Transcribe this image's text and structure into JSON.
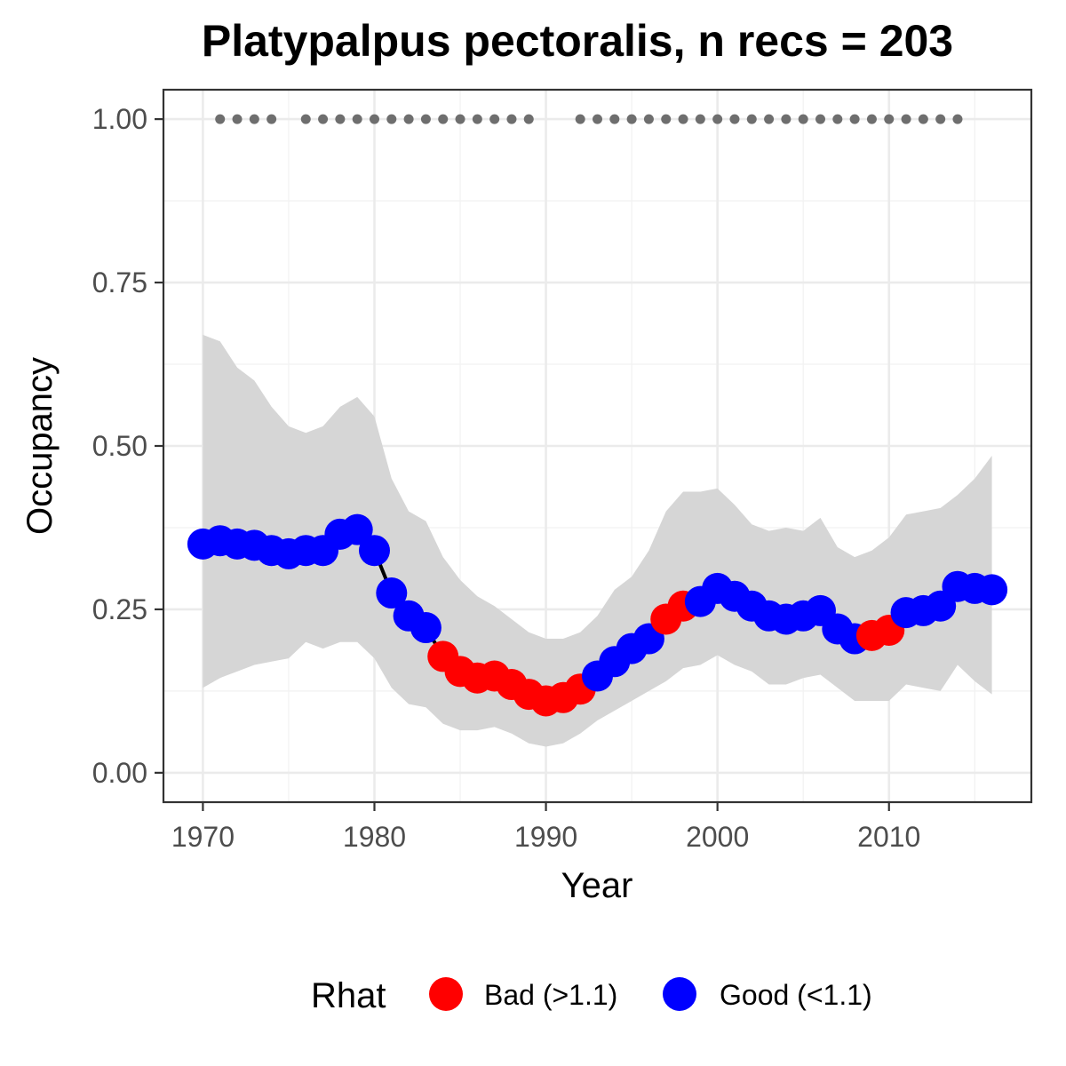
{
  "chart_data": {
    "type": "line",
    "title": "Platypalpus pectoralis, n recs = 203",
    "xlabel": "Year",
    "ylabel": "Occupancy",
    "xlim": [
      1967.7,
      2018.3
    ],
    "ylim": [
      -0.045,
      1.045
    ],
    "x_ticks": [
      1970,
      1980,
      1990,
      2000,
      2010
    ],
    "x_tick_labels": [
      "1970",
      "1980",
      "1990",
      "2000",
      "2010"
    ],
    "y_ticks": [
      0,
      0.25,
      0.5,
      0.75,
      1.0
    ],
    "y_tick_labels": [
      "0.00",
      "0.25",
      "0.50",
      "0.75",
      "1.00"
    ],
    "grid": true,
    "colors": {
      "bad": "#FF0000",
      "good": "#0000FF",
      "ribbon": "#d6d6d6",
      "line": "#000000",
      "record_dots": "#6e6e6e"
    },
    "series": [
      {
        "x": [
          1970,
          1971,
          1972,
          1973,
          1974,
          1975,
          1976,
          1977,
          1978,
          1979,
          1980,
          1981,
          1982,
          1983,
          1984,
          1985,
          1986,
          1987,
          1988,
          1989,
          1990,
          1991,
          1992,
          1993,
          1994,
          1995,
          1996,
          1997,
          1998,
          1999,
          2000,
          2001,
          2002,
          2003,
          2004,
          2005,
          2006,
          2007,
          2008,
          2009,
          2010,
          2011,
          2012,
          2013,
          2014,
          2015,
          2016
        ],
        "y": [
          0.35,
          0.355,
          0.35,
          0.348,
          0.34,
          0.335,
          0.34,
          0.34,
          0.365,
          0.372,
          0.34,
          0.275,
          0.24,
          0.222,
          0.178,
          0.155,
          0.145,
          0.148,
          0.135,
          0.12,
          0.11,
          0.115,
          0.128,
          0.148,
          0.17,
          0.19,
          0.205,
          0.235,
          0.255,
          0.262,
          0.282,
          0.27,
          0.255,
          0.24,
          0.235,
          0.24,
          0.248,
          0.22,
          0.205,
          0.21,
          0.218,
          0.245,
          0.248,
          0.255,
          0.285,
          0.282,
          0.28
        ],
        "rhat": [
          "Good",
          "Good",
          "Good",
          "Good",
          "Good",
          "Good",
          "Good",
          "Good",
          "Good",
          "Good",
          "Good",
          "Good",
          "Good",
          "Good",
          "Bad",
          "Bad",
          "Bad",
          "Bad",
          "Bad",
          "Bad",
          "Bad",
          "Bad",
          "Bad",
          "Good",
          "Good",
          "Good",
          "Good",
          "Bad",
          "Bad",
          "Good",
          "Good",
          "Good",
          "Good",
          "Good",
          "Good",
          "Good",
          "Good",
          "Good",
          "Good",
          "Bad",
          "Bad",
          "Good",
          "Good",
          "Good",
          "Good",
          "Good",
          "Good"
        ],
        "lower": [
          0.13,
          0.145,
          0.155,
          0.165,
          0.17,
          0.175,
          0.2,
          0.19,
          0.2,
          0.2,
          0.175,
          0.13,
          0.105,
          0.1,
          0.075,
          0.065,
          0.065,
          0.07,
          0.06,
          0.045,
          0.04,
          0.045,
          0.06,
          0.08,
          0.095,
          0.11,
          0.125,
          0.14,
          0.16,
          0.165,
          0.18,
          0.165,
          0.155,
          0.135,
          0.135,
          0.145,
          0.15,
          0.13,
          0.11,
          0.11,
          0.11,
          0.135,
          0.13,
          0.125,
          0.165,
          0.14,
          0.12
        ],
        "upper": [
          0.67,
          0.66,
          0.62,
          0.6,
          0.56,
          0.53,
          0.52,
          0.53,
          0.56,
          0.575,
          0.545,
          0.45,
          0.4,
          0.385,
          0.33,
          0.295,
          0.27,
          0.255,
          0.235,
          0.215,
          0.205,
          0.205,
          0.215,
          0.24,
          0.28,
          0.3,
          0.34,
          0.4,
          0.43,
          0.43,
          0.435,
          0.41,
          0.38,
          0.37,
          0.375,
          0.37,
          0.39,
          0.345,
          0.33,
          0.34,
          0.36,
          0.395,
          0.4,
          0.405,
          0.425,
          0.45,
          0.485
        ]
      }
    ],
    "records": {
      "y": 1.0,
      "x": [
        1971,
        1972,
        1973,
        1974,
        1976,
        1977,
        1978,
        1979,
        1980,
        1981,
        1982,
        1983,
        1984,
        1985,
        1986,
        1987,
        1988,
        1989,
        1992,
        1993,
        1994,
        1995,
        1996,
        1997,
        1998,
        1999,
        2000,
        2001,
        2002,
        2003,
        2004,
        2005,
        2006,
        2007,
        2008,
        2009,
        2010,
        2011,
        2012,
        2013,
        2014
      ]
    },
    "legend": {
      "title": "Rhat",
      "position": "bottom",
      "items": [
        {
          "key": "Bad",
          "label": "Bad (>1.1)",
          "color": "#FF0000"
        },
        {
          "key": "Good",
          "label": "Good (<1.1)",
          "color": "#0000FF"
        }
      ]
    }
  }
}
